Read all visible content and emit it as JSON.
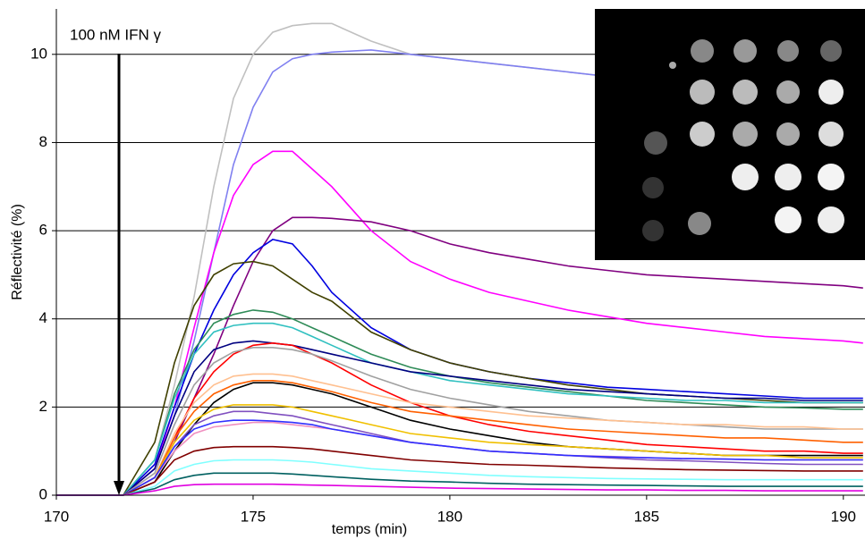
{
  "chart_data": {
    "type": "line",
    "annotation": "100 nM IFN γ",
    "xlabel": "temps (min)",
    "ylabel": "Réflectivité (%)",
    "xlim": [
      170,
      190.55
    ],
    "ylim": [
      0,
      11.03
    ],
    "xticks": [
      170,
      175,
      180,
      185,
      190
    ],
    "yticks": [
      0,
      2,
      4,
      6,
      8,
      10
    ],
    "grid": true,
    "x": [
      170,
      171.7,
      172.5,
      173,
      173.5,
      174,
      174.5,
      175,
      175.5,
      176,
      176.5,
      177,
      178,
      179,
      180,
      181,
      182,
      183,
      184,
      185,
      186,
      187,
      188,
      189,
      190,
      190.5
    ],
    "series": [
      {
        "color": "#c0c0c0",
        "values": [
          0,
          0,
          0.8,
          2.5,
          4.5,
          7,
          9,
          10,
          10.5,
          10.65,
          10.7,
          10.7,
          10.3,
          10.0,
          9.9,
          9.8,
          9.7,
          9.6,
          9.5,
          9.4,
          9.3,
          9.2,
          9.15,
          9.1,
          9.0,
          9.0
        ]
      },
      {
        "color": "#8080f0",
        "values": [
          0,
          0,
          0.6,
          1.8,
          3.5,
          5.5,
          7.5,
          8.8,
          9.6,
          9.9,
          10.0,
          10.05,
          10.1,
          10.0,
          9.9,
          9.8,
          9.7,
          9.6,
          9.5,
          9.4,
          9.3,
          9.25,
          9.2,
          9.1,
          9.05,
          9.0
        ]
      },
      {
        "color": "#ff00ff",
        "values": [
          0,
          0,
          0.6,
          2,
          3.8,
          5.5,
          6.8,
          7.5,
          7.8,
          7.8,
          7.4,
          7.0,
          6.0,
          5.3,
          4.9,
          4.6,
          4.4,
          4.2,
          4.05,
          3.9,
          3.8,
          3.7,
          3.6,
          3.55,
          3.5,
          3.45
        ]
      },
      {
        "color": "#800080",
        "values": [
          0,
          0,
          0.4,
          1.2,
          2.2,
          3.2,
          4.3,
          5.3,
          6.0,
          6.3,
          6.3,
          6.28,
          6.2,
          6.0,
          5.7,
          5.5,
          5.35,
          5.2,
          5.1,
          5.0,
          4.95,
          4.9,
          4.85,
          4.8,
          4.75,
          4.7
        ]
      },
      {
        "color": "#0000e0",
        "values": [
          0,
          0,
          0.7,
          2,
          3.2,
          4.2,
          5.0,
          5.5,
          5.8,
          5.7,
          5.2,
          4.6,
          3.8,
          3.3,
          3.0,
          2.8,
          2.65,
          2.55,
          2.45,
          2.4,
          2.35,
          2.3,
          2.25,
          2.2,
          2.2,
          2.2
        ]
      },
      {
        "color": "#404000",
        "values": [
          0,
          0,
          1.2,
          3,
          4.3,
          5,
          5.25,
          5.3,
          5.2,
          4.9,
          4.6,
          4.4,
          3.7,
          3.3,
          3.0,
          2.8,
          2.65,
          2.5,
          2.4,
          2.3,
          2.25,
          2.2,
          2.15,
          2.1,
          2.1,
          2.1
        ]
      },
      {
        "color": "#2e8b57",
        "values": [
          0,
          0,
          0.8,
          2.3,
          3.3,
          3.9,
          4.1,
          4.2,
          4.15,
          4.0,
          3.8,
          3.6,
          3.2,
          2.9,
          2.7,
          2.55,
          2.45,
          2.35,
          2.25,
          2.15,
          2.1,
          2.05,
          2.0,
          1.98,
          1.95,
          1.95
        ]
      },
      {
        "color": "#30c0c0",
        "values": [
          0,
          0,
          0.8,
          2.2,
          3.2,
          3.7,
          3.85,
          3.9,
          3.9,
          3.8,
          3.6,
          3.4,
          3.0,
          2.8,
          2.6,
          2.5,
          2.4,
          2.3,
          2.25,
          2.2,
          2.15,
          2.15,
          2.1,
          2.1,
          2.1,
          2.1
        ]
      },
      {
        "color": "#000080",
        "values": [
          0,
          0,
          0.6,
          1.8,
          2.8,
          3.3,
          3.45,
          3.5,
          3.45,
          3.4,
          3.3,
          3.2,
          3.0,
          2.8,
          2.7,
          2.6,
          2.5,
          2.4,
          2.35,
          2.3,
          2.25,
          2.2,
          2.2,
          2.15,
          2.15,
          2.15
        ]
      },
      {
        "color": "#ff0000",
        "values": [
          0,
          0,
          0.4,
          1.3,
          2.2,
          2.8,
          3.2,
          3.4,
          3.45,
          3.4,
          3.2,
          3.0,
          2.5,
          2.1,
          1.8,
          1.6,
          1.45,
          1.35,
          1.25,
          1.15,
          1.1,
          1.05,
          1.0,
          1.0,
          0.95,
          0.95
        ]
      },
      {
        "color": "#a0a0a0",
        "values": [
          0,
          0,
          0.5,
          1.6,
          2.5,
          3.0,
          3.25,
          3.35,
          3.35,
          3.3,
          3.2,
          3.05,
          2.7,
          2.4,
          2.2,
          2.05,
          1.9,
          1.8,
          1.7,
          1.65,
          1.6,
          1.55,
          1.5,
          1.5,
          1.5,
          1.5
        ]
      },
      {
        "color": "#ffc090",
        "values": [
          0,
          0,
          0.4,
          1.4,
          2.1,
          2.5,
          2.7,
          2.75,
          2.75,
          2.7,
          2.6,
          2.5,
          2.3,
          2.1,
          2.0,
          1.9,
          1.8,
          1.75,
          1.7,
          1.65,
          1.6,
          1.6,
          1.55,
          1.55,
          1.5,
          1.5
        ]
      },
      {
        "color": "#ff6000",
        "values": [
          0,
          0,
          0.4,
          1.3,
          1.9,
          2.3,
          2.5,
          2.6,
          2.6,
          2.55,
          2.45,
          2.35,
          2.1,
          1.9,
          1.8,
          1.7,
          1.6,
          1.5,
          1.45,
          1.4,
          1.35,
          1.3,
          1.3,
          1.25,
          1.2,
          1.2
        ]
      },
      {
        "color": "#000000",
        "values": [
          0,
          0,
          0.3,
          1.0,
          1.6,
          2.1,
          2.4,
          2.55,
          2.55,
          2.5,
          2.4,
          2.3,
          2.0,
          1.7,
          1.5,
          1.35,
          1.2,
          1.1,
          1.05,
          1.0,
          0.95,
          0.9,
          0.9,
          0.9,
          0.9,
          0.9
        ]
      },
      {
        "color": "#f0c000",
        "values": [
          0,
          0,
          0.4,
          1.2,
          1.7,
          1.95,
          2.05,
          2.05,
          2.05,
          2.0,
          1.9,
          1.8,
          1.6,
          1.4,
          1.3,
          1.2,
          1.15,
          1.1,
          1.05,
          1.0,
          0.95,
          0.9,
          0.9,
          0.85,
          0.85,
          0.85
        ]
      },
      {
        "color": "#8050c0",
        "values": [
          0,
          0,
          0.4,
          1.1,
          1.6,
          1.8,
          1.9,
          1.9,
          1.85,
          1.8,
          1.7,
          1.6,
          1.4,
          1.2,
          1.1,
          1.0,
          0.95,
          0.9,
          0.85,
          0.8,
          0.78,
          0.75,
          0.72,
          0.7,
          0.7,
          0.7
        ]
      },
      {
        "color": "#f090c0",
        "values": [
          0,
          0,
          0.4,
          1.0,
          1.4,
          1.55,
          1.6,
          1.65,
          1.65,
          1.6,
          1.55,
          1.5,
          1.35,
          1.2,
          1.1,
          1.0,
          0.95,
          0.9,
          0.88,
          0.85,
          0.83,
          0.82,
          0.8,
          0.8,
          0.8,
          0.8
        ]
      },
      {
        "color": "#3030ff",
        "values": [
          0,
          0,
          0.4,
          1.1,
          1.5,
          1.65,
          1.7,
          1.7,
          1.68,
          1.65,
          1.6,
          1.5,
          1.35,
          1.2,
          1.1,
          1.0,
          0.95,
          0.9,
          0.87,
          0.85,
          0.83,
          0.82,
          0.8,
          0.8,
          0.8,
          0.8
        ]
      },
      {
        "color": "#800000",
        "values": [
          0,
          0,
          0.3,
          0.8,
          1.0,
          1.08,
          1.1,
          1.1,
          1.1,
          1.08,
          1.05,
          1.0,
          0.9,
          0.8,
          0.75,
          0.7,
          0.68,
          0.65,
          0.62,
          0.6,
          0.58,
          0.57,
          0.56,
          0.55,
          0.55,
          0.55
        ]
      },
      {
        "color": "#80ffff",
        "values": [
          0,
          0,
          0.2,
          0.55,
          0.7,
          0.78,
          0.8,
          0.8,
          0.8,
          0.78,
          0.75,
          0.7,
          0.6,
          0.55,
          0.5,
          0.45,
          0.42,
          0.4,
          0.38,
          0.37,
          0.36,
          0.35,
          0.35,
          0.35,
          0.35,
          0.35
        ]
      },
      {
        "color": "#006060",
        "values": [
          0,
          0,
          0.15,
          0.35,
          0.45,
          0.5,
          0.5,
          0.5,
          0.5,
          0.48,
          0.45,
          0.42,
          0.36,
          0.32,
          0.3,
          0.27,
          0.25,
          0.24,
          0.23,
          0.22,
          0.21,
          0.2,
          0.2,
          0.2,
          0.2,
          0.2
        ]
      },
      {
        "color": "#e000e0",
        "values": [
          0,
          0,
          0.1,
          0.2,
          0.24,
          0.25,
          0.25,
          0.25,
          0.25,
          0.24,
          0.23,
          0.22,
          0.2,
          0.18,
          0.16,
          0.15,
          0.14,
          0.13,
          0.12,
          0.12,
          0.11,
          0.11,
          0.1,
          0.1,
          0.1,
          0.1
        ]
      }
    ]
  }
}
